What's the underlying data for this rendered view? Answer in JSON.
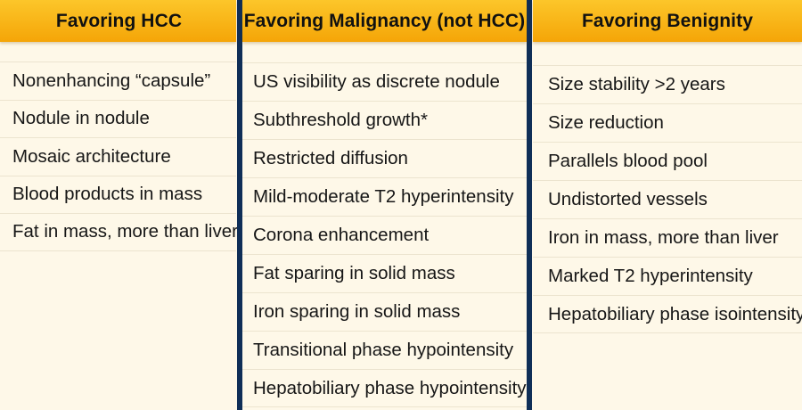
{
  "columns": [
    {
      "header": "Favoring HCC",
      "items": [
        "Nonenhancing “capsule”",
        "Nodule in nodule",
        "Mosaic architecture",
        "Blood products in mass",
        "Fat in mass, more than liver"
      ]
    },
    {
      "header": "Favoring Malignancy (not HCC)",
      "items": [
        "US visibility as discrete nodule",
        "Subthreshold growth*",
        "Restricted diffusion",
        "Mild-moderate T2 hyperintensity",
        "Corona enhancement",
        "Fat sparing in solid mass",
        "Iron sparing in solid mass",
        "Transitional phase hypointensity",
        "Hepatobiliary phase hypointensity"
      ]
    },
    {
      "header": "Favoring Benignity",
      "items": [
        "Size stability >2 years",
        "Size reduction",
        "Parallels blood pool",
        "Undistorted vessels",
        "Iron in mass, more than liver",
        "Marked T2 hyperintensity",
        "Hepatobiliary phase isointensity"
      ]
    }
  ],
  "colors": {
    "header_gradient_top": "#fcc62a",
    "header_gradient_bottom": "#f5a507",
    "background": "#fef8e8",
    "divider": "#0f2e57"
  }
}
